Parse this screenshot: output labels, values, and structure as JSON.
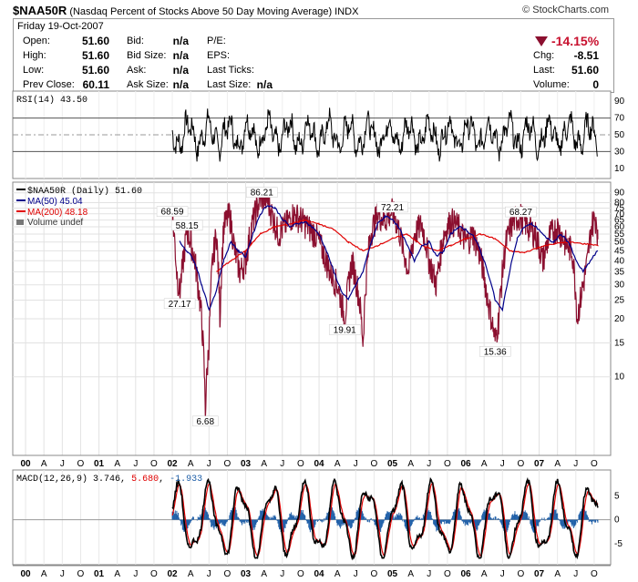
{
  "header": {
    "symbol": "$NAA50R",
    "description": "(Nasdaq Percent of Stocks Above 50 Day Moving Average)",
    "exchange": "INDX",
    "brand": "© StockCharts.com"
  },
  "quote": {
    "date": "Friday  19-Oct-2007",
    "open_label": "Open:",
    "open": "51.60",
    "high_label": "High:",
    "high": "51.60",
    "low_label": "Low:",
    "low": "51.60",
    "prev_label": "Prev Close:",
    "prev": "60.11",
    "bid_label": "Bid:",
    "bid": "n/a",
    "bidsize_label": "Bid Size:",
    "bidsize": "n/a",
    "ask_label": "Ask:",
    "ask": "n/a",
    "asksize_label": "Ask Size:",
    "asksize": "n/a",
    "pe_label": "P/E:",
    "eps_label": "EPS:",
    "lastticks_label": "Last Ticks:",
    "lastsize_label": "Last Size:",
    "lastsize": "n/a",
    "pct_change": "-14.15%",
    "chg_label": "Chg:",
    "chg": "-8.51",
    "last_label": "Last:",
    "last": "51.60",
    "volume_label": "Volume:",
    "volume": "0"
  },
  "colors": {
    "price": "#8b0f2f",
    "ma50": "#00008b",
    "ma200": "#e00000",
    "macd_hist": "#1f5fa8",
    "down": "#8b0f2f"
  },
  "chart_data": [
    {
      "type": "line",
      "panel": "rsi",
      "legend": "RSI(14) 43.50",
      "yticks": [
        10,
        30,
        50,
        70,
        90
      ],
      "ylim": [
        0,
        100
      ],
      "reference_lines": [
        30,
        50,
        70
      ]
    },
    {
      "type": "line",
      "panel": "price",
      "scale": "log",
      "ylim": [
        4,
        100
      ],
      "yticks": [
        10,
        15,
        20,
        25,
        30,
        35,
        40,
        45,
        50,
        55,
        60,
        65,
        70,
        75,
        80,
        90
      ],
      "legend": [
        "$NAA50R (Daily) 51.60",
        "MA(50) 45.04",
        "MA(200) 48.18",
        "Volume undef"
      ],
      "series": [
        {
          "name": "$NAA50R (Daily) 51.60",
          "x": [
            2002.0,
            2002.06,
            2002.1,
            2002.15,
            2002.2,
            2002.25,
            2002.3,
            2002.35,
            2002.4,
            2002.45,
            2002.5,
            2002.55,
            2002.6,
            2002.65,
            2002.7,
            2002.78,
            2002.85,
            2002.92,
            2003.0,
            2003.08,
            2003.15,
            2003.22,
            2003.3,
            2003.38,
            2003.45,
            2003.55,
            2003.65,
            2003.75,
            2003.85,
            2003.95,
            2004.05,
            2004.15,
            2004.25,
            2004.35,
            2004.45,
            2004.55,
            2004.6,
            2004.7,
            2004.8,
            2004.9,
            2005.0,
            2005.08,
            2005.15,
            2005.22,
            2005.3,
            2005.4,
            2005.5,
            2005.6,
            2005.7,
            2005.8,
            2005.9,
            2006.0,
            2006.1,
            2006.2,
            2006.3,
            2006.4,
            2006.45,
            2006.55,
            2006.65,
            2006.75,
            2006.85,
            2006.95,
            2007.05,
            2007.15,
            2007.25,
            2007.35,
            2007.45,
            2007.52,
            2007.6,
            2007.66,
            2007.72,
            2007.78,
            2007.8
          ],
          "y": [
            68.59,
            35,
            27.17,
            40,
            58.15,
            50,
            42,
            30,
            20,
            6.68,
            15,
            40,
            55,
            20,
            60,
            70,
            45,
            35,
            40,
            60,
            75,
            86.21,
            82,
            65,
            55,
            62,
            70,
            66,
            60,
            55,
            45,
            35,
            30,
            19.91,
            40,
            25,
            15,
            55,
            70,
            65,
            72.21,
            60,
            45,
            35,
            55,
            62,
            40,
            30,
            55,
            65,
            60,
            50,
            55,
            42,
            25,
            15.36,
            20,
            50,
            65,
            68.27,
            60,
            55,
            40,
            55,
            60,
            50,
            45,
            20,
            30,
            40,
            62,
            68,
            51.6
          ]
        },
        {
          "name": "MA(50) 45.04",
          "x": [
            2002.1,
            2002.2,
            2002.3,
            2002.4,
            2002.5,
            2002.6,
            2002.7,
            2002.8,
            2002.9,
            2003.0,
            2003.1,
            2003.2,
            2003.3,
            2003.4,
            2003.5,
            2003.6,
            2003.7,
            2003.8,
            2003.9,
            2004.0,
            2004.1,
            2004.2,
            2004.3,
            2004.4,
            2004.5,
            2004.6,
            2004.7,
            2004.8,
            2004.9,
            2005.0,
            2005.1,
            2005.2,
            2005.3,
            2005.4,
            2005.5,
            2005.6,
            2005.7,
            2005.8,
            2005.9,
            2006.0,
            2006.1,
            2006.2,
            2006.3,
            2006.4,
            2006.5,
            2006.6,
            2006.7,
            2006.8,
            2006.9,
            2007.0,
            2007.1,
            2007.2,
            2007.3,
            2007.4,
            2007.5,
            2007.6,
            2007.7,
            2007.8
          ],
          "y": [
            50,
            45,
            40,
            30,
            22,
            28,
            40,
            50,
            45,
            42,
            55,
            70,
            78,
            75,
            66,
            60,
            62,
            64,
            60,
            55,
            45,
            35,
            28,
            25,
            30,
            35,
            48,
            62,
            68,
            66,
            58,
            48,
            40,
            48,
            50,
            42,
            45,
            55,
            60,
            58,
            54,
            45,
            35,
            25,
            22,
            35,
            52,
            60,
            62,
            58,
            52,
            50,
            55,
            50,
            40,
            35,
            40,
            45.04
          ]
        },
        {
          "name": "MA(200) 48.18",
          "x": [
            2002.6,
            2002.8,
            2003.0,
            2003.2,
            2003.4,
            2003.6,
            2003.8,
            2004.0,
            2004.2,
            2004.4,
            2004.6,
            2004.8,
            2005.0,
            2005.2,
            2005.4,
            2005.6,
            2005.8,
            2006.0,
            2006.2,
            2006.4,
            2006.6,
            2006.8,
            2007.0,
            2007.2,
            2007.4,
            2007.6,
            2007.8
          ],
          "y": [
            35,
            40,
            45,
            55,
            60,
            62,
            65,
            62,
            58,
            50,
            45,
            48,
            52,
            55,
            48,
            45,
            48,
            52,
            55,
            52,
            45,
            44,
            47,
            49,
            50,
            49,
            48.18
          ]
        }
      ],
      "annotations": [
        {
          "label": "68.59",
          "x": 2002.0,
          "y": 68.59
        },
        {
          "label": "58.15",
          "x": 2002.2,
          "y": 58.15
        },
        {
          "label": "27.17",
          "x": 2002.1,
          "y": 27.17
        },
        {
          "label": "6.68",
          "x": 2002.45,
          "y": 6.68
        },
        {
          "label": "86.21",
          "x": 2003.22,
          "y": 86.21
        },
        {
          "label": "19.91",
          "x": 2004.35,
          "y": 19.91
        },
        {
          "label": "72.21",
          "x": 2005.0,
          "y": 72.21
        },
        {
          "label": "15.36",
          "x": 2006.4,
          "y": 15.36
        },
        {
          "label": "68.27",
          "x": 2006.75,
          "y": 68.27
        }
      ]
    },
    {
      "type": "line",
      "panel": "macd",
      "legend_name": "MACD(12,26,9)",
      "legend_values": [
        "3.746",
        "5.680",
        "-1.933"
      ],
      "yticks": [
        -5,
        0,
        5
      ],
      "ylim": [
        -9,
        10
      ]
    }
  ],
  "xaxis": {
    "labels": [
      {
        "t": "00",
        "y": 2000.0,
        "bold": true
      },
      {
        "t": "A",
        "y": 2000.25
      },
      {
        "t": "J",
        "y": 2000.5
      },
      {
        "t": "O",
        "y": 2000.75
      },
      {
        "t": "01",
        "y": 2001.0,
        "bold": true
      },
      {
        "t": "A",
        "y": 2001.25
      },
      {
        "t": "J",
        "y": 2001.5
      },
      {
        "t": "O",
        "y": 2001.75
      },
      {
        "t": "02",
        "y": 2002.0,
        "bold": true
      },
      {
        "t": "A",
        "y": 2002.25
      },
      {
        "t": "J",
        "y": 2002.5
      },
      {
        "t": "O",
        "y": 2002.75
      },
      {
        "t": "03",
        "y": 2003.0,
        "bold": true
      },
      {
        "t": "A",
        "y": 2003.25
      },
      {
        "t": "J",
        "y": 2003.5
      },
      {
        "t": "O",
        "y": 2003.75
      },
      {
        "t": "04",
        "y": 2004.0,
        "bold": true
      },
      {
        "t": "A",
        "y": 2004.25
      },
      {
        "t": "J",
        "y": 2004.5
      },
      {
        "t": "O",
        "y": 2004.75
      },
      {
        "t": "05",
        "y": 2005.0,
        "bold": true
      },
      {
        "t": "A",
        "y": 2005.25
      },
      {
        "t": "J",
        "y": 2005.5
      },
      {
        "t": "O",
        "y": 2005.75
      },
      {
        "t": "06",
        "y": 2006.0,
        "bold": true
      },
      {
        "t": "A",
        "y": 2006.25
      },
      {
        "t": "J",
        "y": 2006.5
      },
      {
        "t": "O",
        "y": 2006.75
      },
      {
        "t": "07",
        "y": 2007.0,
        "bold": true
      },
      {
        "t": "A",
        "y": 2007.25
      },
      {
        "t": "J",
        "y": 2007.5
      },
      {
        "t": "O",
        "y": 2007.75
      }
    ]
  }
}
